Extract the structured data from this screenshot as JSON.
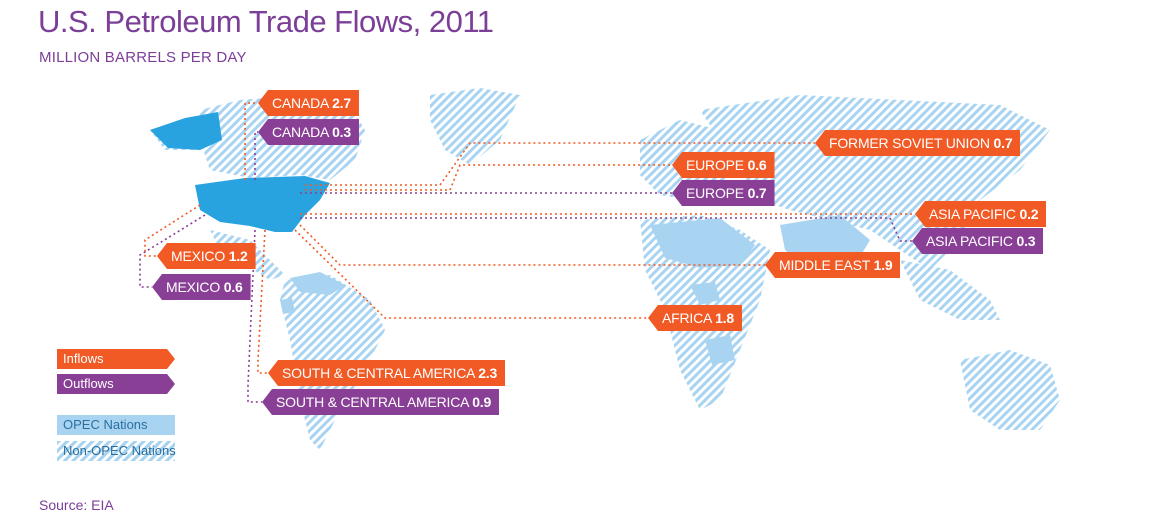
{
  "title": "U.S. Petroleum Trade Flows, 2011",
  "subtitle": "MILLION BARRELS PER DAY",
  "source": "Source: EIA",
  "colors": {
    "inflow": "#f15a24",
    "outflow": "#8a3f96",
    "opec": "#a8d4f2",
    "usa": "#29a3e0"
  },
  "flows": [
    {
      "region": "CANADA",
      "value": "2.7",
      "direction": "inflow"
    },
    {
      "region": "CANADA",
      "value": "0.3",
      "direction": "outflow"
    },
    {
      "region": "FORMER SOVIET UNION",
      "value": "0.7",
      "direction": "inflow"
    },
    {
      "region": "EUROPE",
      "value": "0.6",
      "direction": "inflow"
    },
    {
      "region": "EUROPE",
      "value": "0.7",
      "direction": "outflow"
    },
    {
      "region": "ASIA PACIFIC",
      "value": "0.2",
      "direction": "inflow"
    },
    {
      "region": "ASIA PACIFIC",
      "value": "0.3",
      "direction": "outflow"
    },
    {
      "region": "MEXICO",
      "value": "1.2",
      "direction": "inflow"
    },
    {
      "region": "MEXICO",
      "value": "0.6",
      "direction": "outflow"
    },
    {
      "region": "MIDDLE EAST",
      "value": "1.9",
      "direction": "inflow"
    },
    {
      "region": "AFRICA",
      "value": "1.8",
      "direction": "inflow"
    },
    {
      "region": "SOUTH & CENTRAL AMERICA",
      "value": "2.3",
      "direction": "inflow"
    },
    {
      "region": "SOUTH  & CENTRAL AMERICA",
      "value": "0.9",
      "direction": "outflow"
    }
  ],
  "legend": {
    "inflows": "Inflows",
    "outflows": "Outflows",
    "opec": "OPEC Nations",
    "non_opec": "Non-OPEC Nations"
  }
}
